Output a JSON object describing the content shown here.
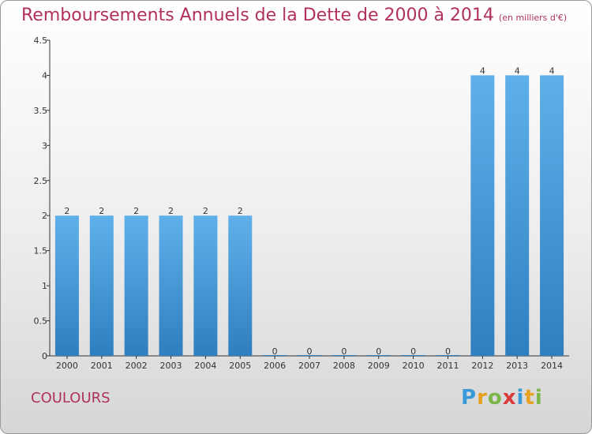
{
  "header": {
    "title": "Remboursements Annuels de la Dette de 2000 à 2014",
    "unit": "(en milliers d'€)"
  },
  "footer": {
    "commune": "COULOURS",
    "brand_letters": [
      "P",
      "r",
      "o",
      "x",
      "i",
      "t",
      "i"
    ],
    "brand_colors": [
      "#3a9ad9",
      "#e8a020",
      "#7ab648",
      "#d93a3a",
      "#3a9ad9",
      "#e8a020",
      "#7ab648"
    ]
  },
  "chart_data": {
    "type": "bar",
    "categories": [
      "2000",
      "2001",
      "2002",
      "2003",
      "2004",
      "2005",
      "2006",
      "2007",
      "2008",
      "2009",
      "2010",
      "2011",
      "2012",
      "2013",
      "2014"
    ],
    "values": [
      2,
      2,
      2,
      2,
      2,
      2,
      0,
      0,
      0,
      0,
      0,
      0,
      4,
      4,
      4
    ],
    "value_labels": [
      "2",
      "2",
      "2",
      "2",
      "2",
      "2",
      "0",
      "0",
      "0",
      "0",
      "0",
      "0",
      "4",
      "4",
      "4"
    ],
    "y_ticks": [
      0,
      0.5,
      1,
      1.5,
      2,
      2.5,
      3,
      3.5,
      4,
      4.5
    ],
    "y_tick_labels": [
      "0",
      "0.5",
      "1",
      "1.5",
      "2",
      "2.5",
      "3",
      "3.5",
      "4",
      "4.5"
    ],
    "ylim": [
      0,
      4.5
    ],
    "grid": false,
    "colors": {
      "bar_light": "#5fb0ea",
      "bar_dark": "#2f7fc0",
      "axis": "#333333"
    }
  }
}
